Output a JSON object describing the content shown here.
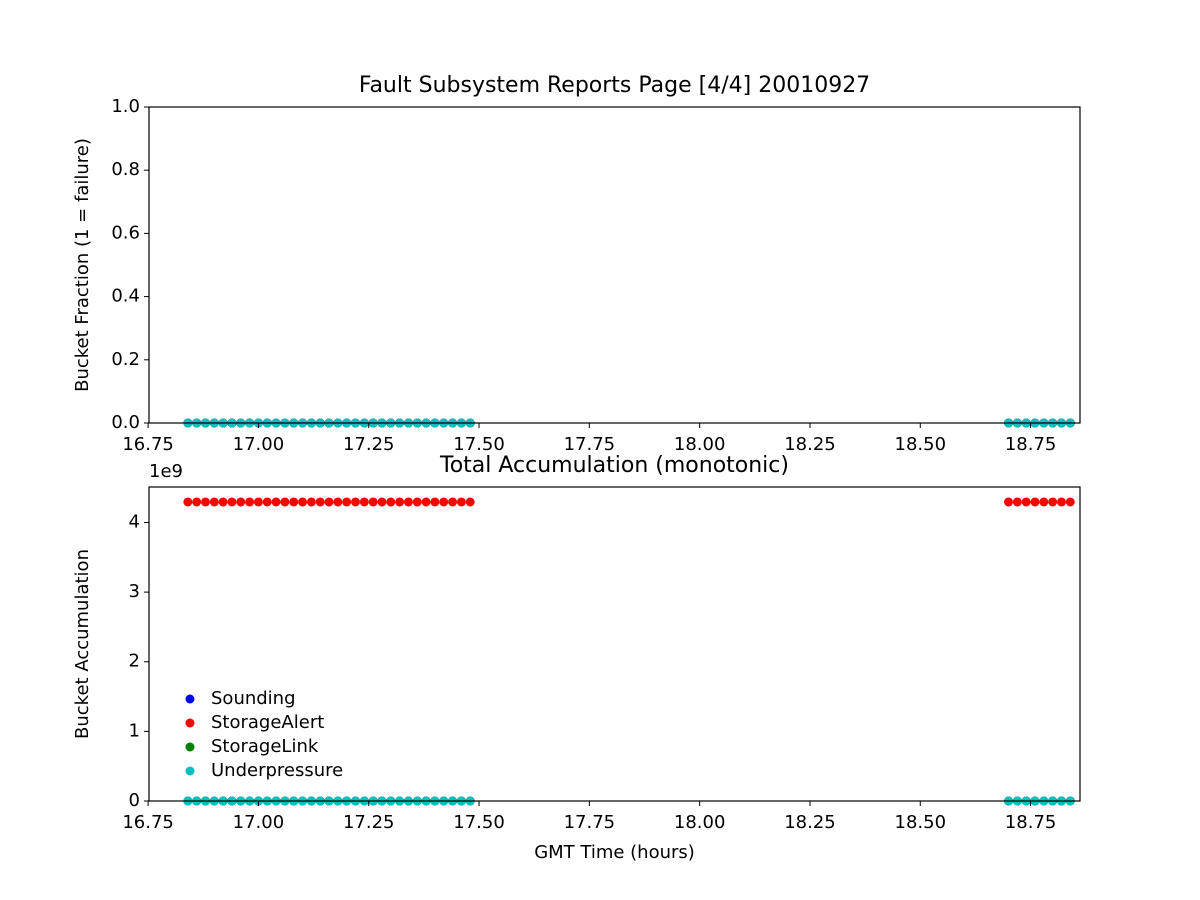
{
  "chart_data": [
    {
      "type": "scatter",
      "title": "Fault Subsystem Reports Page [4/4] 20010927",
      "y_label": "Bucket Fraction (1 = failure)",
      "x": [
        16.84,
        16.86,
        16.88,
        16.9,
        16.92,
        16.94,
        16.96,
        16.98,
        17,
        17.02,
        17.04,
        17.06,
        17.08,
        17.1,
        17.12,
        17.14,
        17.16,
        17.18,
        17.2,
        17.22,
        17.24,
        17.26,
        17.28,
        17.3,
        17.32,
        17.34,
        17.36,
        17.38,
        17.4,
        17.42,
        17.44,
        17.46,
        17.48,
        18.7,
        18.72,
        18.74,
        18.76,
        18.78,
        18.8,
        18.82,
        18.84
      ],
      "series": [
        {
          "name": "Sounding",
          "color": "#0000ff",
          "values": [
            0,
            0,
            0,
            0,
            0,
            0,
            0,
            0,
            0,
            0,
            0,
            0,
            0,
            0,
            0,
            0,
            0,
            0,
            0,
            0,
            0,
            0,
            0,
            0,
            0,
            0,
            0,
            0,
            0,
            0,
            0,
            0,
            0,
            0,
            0,
            0,
            0,
            0,
            0,
            0,
            0
          ]
        },
        {
          "name": "StorageAlert",
          "color": "#ff0000",
          "values": [
            0,
            0,
            0,
            0,
            0,
            0,
            0,
            0,
            0,
            0,
            0,
            0,
            0,
            0,
            0,
            0,
            0,
            0,
            0,
            0,
            0,
            0,
            0,
            0,
            0,
            0,
            0,
            0,
            0,
            0,
            0,
            0,
            0,
            0,
            0,
            0,
            0,
            0,
            0,
            0,
            0
          ]
        },
        {
          "name": "StorageLink",
          "color": "#008000",
          "values": [
            0,
            0,
            0,
            0,
            0,
            0,
            0,
            0,
            0,
            0,
            0,
            0,
            0,
            0,
            0,
            0,
            0,
            0,
            0,
            0,
            0,
            0,
            0,
            0,
            0,
            0,
            0,
            0,
            0,
            0,
            0,
            0,
            0,
            0,
            0,
            0,
            0,
            0,
            0,
            0,
            0
          ]
        },
        {
          "name": "Underpressure",
          "color": "#00bfbf",
          "values": [
            0,
            0,
            0,
            0,
            0,
            0,
            0,
            0,
            0,
            0,
            0,
            0,
            0,
            0,
            0,
            0,
            0,
            0,
            0,
            0,
            0,
            0,
            0,
            0,
            0,
            0,
            0,
            0,
            0,
            0,
            0,
            0,
            0,
            0,
            0,
            0,
            0,
            0,
            0,
            0,
            0
          ]
        }
      ],
      "xlim": [
        16.752,
        18.862
      ],
      "xticks": [
        16.75,
        {
          "value": 17,
          "label": "17.00"
        },
        17.25,
        {
          "value": 17.5,
          "label": "17.50"
        },
        17.75,
        {
          "value": 18,
          "label": "18.00"
        },
        18.25,
        {
          "value": 18.5,
          "label": "18.50"
        },
        18.75
      ],
      "ylim": [
        0,
        1
      ],
      "yticks": [
        {
          "value": 0,
          "label": "0.0"
        },
        0.2,
        0.4,
        0.6,
        0.8,
        {
          "value": 1,
          "label": "1.0"
        }
      ]
    },
    {
      "type": "scatter",
      "title": "Total Accumulation (monotonic)",
      "x_label": "GMT Time (hours)",
      "y_label": "Bucket Accumulation",
      "y_offset_label": "1e9",
      "x": [
        16.84,
        16.86,
        16.88,
        16.9,
        16.92,
        16.94,
        16.96,
        16.98,
        17,
        17.02,
        17.04,
        17.06,
        17.08,
        17.1,
        17.12,
        17.14,
        17.16,
        17.18,
        17.2,
        17.22,
        17.24,
        17.26,
        17.28,
        17.3,
        17.32,
        17.34,
        17.36,
        17.38,
        17.4,
        17.42,
        17.44,
        17.46,
        17.48,
        18.7,
        18.72,
        18.74,
        18.76,
        18.78,
        18.8,
        18.82,
        18.84
      ],
      "series": [
        {
          "name": "Sounding",
          "color": "#0000ff",
          "values": [
            0,
            0,
            0,
            0,
            0,
            0,
            0,
            0,
            0,
            0,
            0,
            0,
            0,
            0,
            0,
            0,
            0,
            0,
            0,
            0,
            0,
            0,
            0,
            0,
            0,
            0,
            0,
            0,
            0,
            0,
            0,
            0,
            0,
            0,
            0,
            0,
            0,
            0,
            0,
            0,
            0
          ]
        },
        {
          "name": "StorageAlert",
          "color": "#ff0000",
          "values": [
            4294967295,
            4294967295,
            4294967295,
            4294967295,
            4294967295,
            4294967295,
            4294967295,
            4294967295,
            4294967295,
            4294967295,
            4294967295,
            4294967295,
            4294967295,
            4294967295,
            4294967295,
            4294967295,
            4294967295,
            4294967295,
            4294967295,
            4294967295,
            4294967295,
            4294967295,
            4294967295,
            4294967295,
            4294967295,
            4294967295,
            4294967295,
            4294967295,
            4294967295,
            4294967295,
            4294967295,
            4294967295,
            4294967295,
            4294967295,
            4294967295,
            4294967295,
            4294967295,
            4294967295,
            4294967295,
            4294967295,
            4294967295
          ]
        },
        {
          "name": "StorageLink",
          "color": "#008000",
          "values": [
            0,
            0,
            0,
            0,
            0,
            0,
            0,
            0,
            0,
            0,
            0,
            0,
            0,
            0,
            0,
            0,
            0,
            0,
            0,
            0,
            0,
            0,
            0,
            0,
            0,
            0,
            0,
            0,
            0,
            0,
            0,
            0,
            0,
            0,
            0,
            0,
            0,
            0,
            0,
            0,
            0
          ]
        },
        {
          "name": "Underpressure",
          "color": "#00bfbf",
          "values": [
            0,
            0,
            0,
            0,
            0,
            0,
            0,
            0,
            0,
            0,
            0,
            0,
            0,
            0,
            0,
            0,
            0,
            0,
            0,
            0,
            0,
            0,
            0,
            0,
            0,
            0,
            0,
            0,
            0,
            0,
            0,
            0,
            0,
            0,
            0,
            0,
            0,
            0,
            0,
            0,
            0
          ]
        }
      ],
      "xlim": [
        16.752,
        18.862
      ],
      "xticks": [
        16.75,
        {
          "value": 17,
          "label": "17.00"
        },
        17.25,
        {
          "value": 17.5,
          "label": "17.50"
        },
        17.75,
        {
          "value": 18,
          "label": "18.00"
        },
        18.25,
        {
          "value": 18.5,
          "label": "18.50"
        },
        18.75
      ],
      "ylim": [
        0,
        4509715660
      ],
      "yticks": [
        {
          "value": 0,
          "label": "0"
        },
        {
          "value": 1000000000,
          "label": "1"
        },
        {
          "value": 2000000000,
          "label": "2"
        },
        {
          "value": 3000000000,
          "label": "3"
        },
        {
          "value": 4000000000,
          "label": "4"
        }
      ],
      "legend": "lower left"
    }
  ]
}
